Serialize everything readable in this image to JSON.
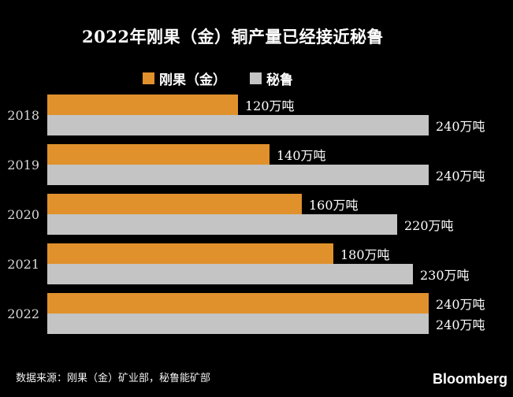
{
  "title": "2022年刚果（金）铜产量已经接近秘鲁",
  "legend": {
    "items": [
      {
        "key": "congo",
        "label": "刚果（金）",
        "color": "#E0912C"
      },
      {
        "key": "peru",
        "label": "秘鲁",
        "color": "#C4C4C4"
      }
    ]
  },
  "chart_data": {
    "type": "bar",
    "orientation": "horizontal",
    "title": "2022年刚果（金）铜产量已经接近秘鲁",
    "unit": "万吨",
    "categories": [
      "2018",
      "2019",
      "2020",
      "2021",
      "2022"
    ],
    "series": [
      {
        "key": "congo",
        "name": "刚果（金）",
        "color": "#E0912C",
        "values": [
          120,
          140,
          160,
          180,
          240
        ],
        "labels": [
          "120万吨",
          "140万吨",
          "160万吨",
          "180万吨",
          "240万吨"
        ]
      },
      {
        "key": "peru",
        "name": "秘鲁",
        "color": "#C4C4C4",
        "values": [
          240,
          240,
          220,
          230,
          240
        ],
        "labels": [
          "240万吨",
          "240万吨",
          "220万吨",
          "230万吨",
          "240万吨"
        ]
      }
    ],
    "xlim": [
      0,
      240
    ],
    "grid": false,
    "legend_position": "top"
  },
  "footer": {
    "source": "数据来源：刚果（金）矿业部，秘鲁能矿部",
    "brand": "Bloomberg"
  },
  "colors": {
    "background": "#000000",
    "title_text": "#FFFFFF",
    "year_text": "#D9D9D9",
    "value_text": "#FFFFFF",
    "congo_bar": "#E0912C",
    "peru_bar": "#C4C4C4"
  }
}
